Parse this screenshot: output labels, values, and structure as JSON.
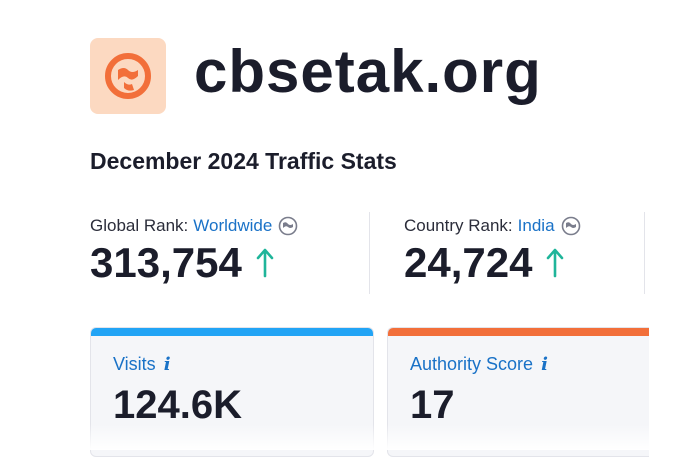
{
  "brand": {
    "domain": "cbsetak.org",
    "logo_icon": "brand-logo-icon",
    "logo_bg": "#fcd9c1",
    "logo_color": "#f26f3a"
  },
  "subtitle": "December 2024 Traffic Stats",
  "global_rank": {
    "label": "Global Rank:",
    "scope": "Worldwide",
    "value": "313,754",
    "trend": "up"
  },
  "country_rank": {
    "label": "Country Rank:",
    "scope": "India",
    "value": "24,724",
    "trend": "up"
  },
  "cards": {
    "visits": {
      "title": "Visits",
      "info": "i",
      "value": "124.6K",
      "accent": "#22a4f5"
    },
    "authority": {
      "title": "Authority Score",
      "info": "i",
      "value": "17",
      "accent": "#f26f3a"
    }
  },
  "colors": {
    "link": "#1a72c7",
    "trend_up": "#1fb59a",
    "text": "#1b1d2b"
  }
}
